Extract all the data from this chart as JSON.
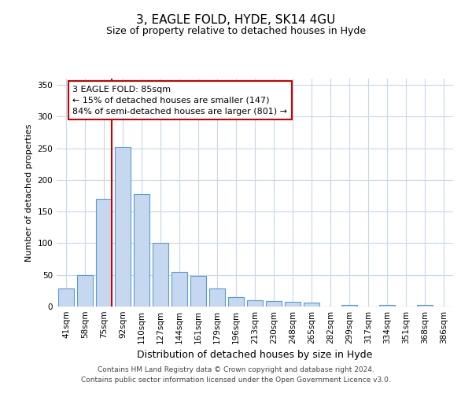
{
  "title": "3, EAGLE FOLD, HYDE, SK14 4GU",
  "subtitle": "Size of property relative to detached houses in Hyde",
  "xlabel": "Distribution of detached houses by size in Hyde",
  "ylabel": "Number of detached properties",
  "bar_labels": [
    "41sqm",
    "58sqm",
    "75sqm",
    "92sqm",
    "110sqm",
    "127sqm",
    "144sqm",
    "161sqm",
    "179sqm",
    "196sqm",
    "213sqm",
    "230sqm",
    "248sqm",
    "265sqm",
    "282sqm",
    "299sqm",
    "317sqm",
    "334sqm",
    "351sqm",
    "368sqm",
    "386sqm"
  ],
  "bar_values": [
    28,
    50,
    170,
    252,
    178,
    101,
    55,
    48,
    28,
    15,
    10,
    9,
    7,
    6,
    0,
    3,
    0,
    3,
    0,
    3,
    0
  ],
  "bar_color": "#c5d8f0",
  "bar_edge_color": "#5b9bd5",
  "ylim": [
    0,
    360
  ],
  "yticks": [
    0,
    50,
    100,
    150,
    200,
    250,
    300,
    350
  ],
  "vline_pos": 2.425,
  "vline_color": "#cc0000",
  "annotation_text": "3 EAGLE FOLD: 85sqm\n← 15% of detached houses are smaller (147)\n84% of semi-detached houses are larger (801) →",
  "annotation_box_color": "#ffffff",
  "annotation_box_edge": "#cc0000",
  "footer_line1": "Contains HM Land Registry data © Crown copyright and database right 2024.",
  "footer_line2": "Contains public sector information licensed under the Open Government Licence v3.0.",
  "background_color": "#ffffff",
  "grid_color": "#c8d8e8",
  "title_fontsize": 11,
  "subtitle_fontsize": 9,
  "ylabel_fontsize": 8,
  "xlabel_fontsize": 9,
  "tick_fontsize": 7.5,
  "annot_fontsize": 8,
  "footer_fontsize": 6.5
}
